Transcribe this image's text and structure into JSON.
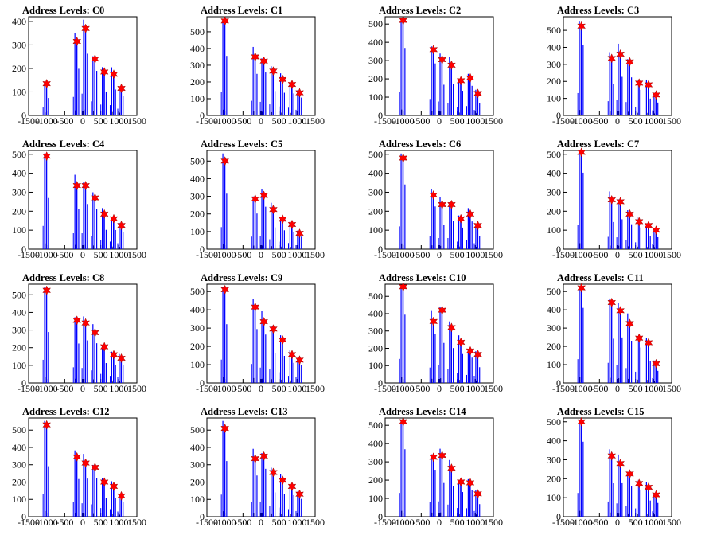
{
  "colors": {
    "bars": "#0000ff",
    "baseline_marks": "#000000",
    "markers": "#ff0000",
    "frame": "#000000"
  },
  "chart_data": [
    {
      "type": "bar",
      "title": "Address Levels: C0",
      "xlim": [
        -1500,
        1500
      ],
      "ylim": [
        0,
        420
      ],
      "yticks": [
        0,
        100,
        200,
        300,
        400
      ],
      "xticks": [
        -1500,
        -1000,
        -500,
        0,
        500,
        1000,
        1500
      ],
      "peaks_x": [
        -1000,
        -160,
        80,
        340,
        600,
        860,
        1070
      ],
      "peaks_y": [
        135,
        315,
        370,
        240,
        185,
        175,
        115
      ]
    },
    {
      "type": "bar",
      "title": "Address Levels: C1",
      "xlim": [
        -1500,
        1500
      ],
      "ylim": [
        0,
        590
      ],
      "yticks": [
        0,
        100,
        200,
        300,
        400,
        500
      ],
      "xticks": [
        -1500,
        -1000,
        -500,
        0,
        500,
        1000,
        1500
      ],
      "peaks_x": [
        -1000,
        -160,
        80,
        340,
        600,
        860,
        1070
      ],
      "peaks_y": [
        565,
        350,
        325,
        265,
        215,
        185,
        135
      ]
    },
    {
      "type": "bar",
      "title": "Address Levels: C2",
      "xlim": [
        -1500,
        1500
      ],
      "ylim": [
        0,
        540
      ],
      "yticks": [
        0,
        100,
        200,
        300,
        400,
        500
      ],
      "xticks": [
        -1500,
        -1000,
        -500,
        0,
        500,
        1000,
        1500
      ],
      "peaks_x": [
        -1000,
        -160,
        80,
        340,
        600,
        860,
        1070
      ],
      "peaks_y": [
        520,
        360,
        305,
        275,
        190,
        205,
        120
      ]
    },
    {
      "type": "bar",
      "title": "Address Levels: C3",
      "xlim": [
        -1500,
        1500
      ],
      "ylim": [
        0,
        580
      ],
      "yticks": [
        0,
        100,
        200,
        300,
        400,
        500
      ],
      "xticks": [
        -1500,
        -1000,
        -500,
        0,
        500,
        1000,
        1500
      ],
      "peaks_x": [
        -1000,
        -160,
        80,
        340,
        600,
        860,
        1070
      ],
      "peaks_y": [
        525,
        335,
        360,
        315,
        190,
        180,
        120
      ]
    },
    {
      "type": "bar",
      "title": "Address Levels: C4",
      "xlim": [
        -1500,
        1500
      ],
      "ylim": [
        0,
        520
      ],
      "yticks": [
        0,
        100,
        200,
        300,
        400,
        500
      ],
      "xticks": [
        -1500,
        -1000,
        -500,
        0,
        500,
        1000,
        1500
      ],
      "peaks_x": [
        -1000,
        -160,
        80,
        340,
        600,
        860,
        1070
      ],
      "peaks_y": [
        490,
        335,
        335,
        270,
        185,
        160,
        125
      ]
    },
    {
      "type": "bar",
      "title": "Address Levels: C5",
      "xlim": [
        -1500,
        1500
      ],
      "ylim": [
        0,
        560
      ],
      "yticks": [
        0,
        100,
        200,
        300,
        400,
        500
      ],
      "xticks": [
        -1500,
        -1000,
        -500,
        0,
        500,
        1000,
        1500
      ],
      "peaks_x": [
        -1000,
        -160,
        80,
        340,
        600,
        860,
        1070
      ],
      "peaks_y": [
        500,
        285,
        305,
        225,
        170,
        140,
        90
      ]
    },
    {
      "type": "bar",
      "title": "Address Levels: C6",
      "xlim": [
        -1500,
        1500
      ],
      "ylim": [
        0,
        520
      ],
      "yticks": [
        0,
        100,
        200,
        300,
        400,
        500
      ],
      "xticks": [
        -1500,
        -1000,
        -500,
        0,
        500,
        1000,
        1500
      ],
      "peaks_x": [
        -1000,
        -160,
        80,
        340,
        600,
        860,
        1070
      ],
      "peaks_y": [
        480,
        285,
        235,
        235,
        160,
        185,
        125
      ]
    },
    {
      "type": "bar",
      "title": "Address Levels: C7",
      "xlim": [
        -1500,
        1500
      ],
      "ylim": [
        0,
        520
      ],
      "yticks": [
        0,
        100,
        200,
        300,
        400,
        500
      ],
      "xticks": [
        -1500,
        -1000,
        -500,
        0,
        500,
        1000,
        1500
      ],
      "peaks_x": [
        -1000,
        -160,
        80,
        340,
        600,
        860,
        1070
      ],
      "peaks_y": [
        510,
        260,
        250,
        185,
        145,
        125,
        100
      ]
    },
    {
      "type": "bar",
      "title": "Address Levels: C8",
      "xlim": [
        -1500,
        1500
      ],
      "ylim": [
        0,
        560
      ],
      "yticks": [
        0,
        100,
        200,
        300,
        400,
        500
      ],
      "xticks": [
        -1500,
        -1000,
        -500,
        0,
        500,
        1000,
        1500
      ],
      "peaks_x": [
        -1000,
        -160,
        80,
        340,
        600,
        860,
        1070
      ],
      "peaks_y": [
        525,
        355,
        340,
        285,
        205,
        160,
        140
      ]
    },
    {
      "type": "bar",
      "title": "Address Levels: C9",
      "xlim": [
        -1500,
        1500
      ],
      "ylim": [
        0,
        540
      ],
      "yticks": [
        0,
        100,
        200,
        300,
        400,
        500
      ],
      "xticks": [
        -1500,
        -1000,
        -500,
        0,
        500,
        1000,
        1500
      ],
      "peaks_x": [
        -1000,
        -160,
        80,
        340,
        600,
        860,
        1070
      ],
      "peaks_y": [
        510,
        415,
        335,
        295,
        235,
        155,
        125
      ]
    },
    {
      "type": "bar",
      "title": "Address Levels: C10",
      "xlim": [
        -1500,
        1500
      ],
      "ylim": [
        0,
        570
      ],
      "yticks": [
        0,
        100,
        200,
        300,
        400,
        500
      ],
      "xticks": [
        -1500,
        -1000,
        -500,
        0,
        500,
        1000,
        1500
      ],
      "peaks_x": [
        -1000,
        -160,
        80,
        340,
        600,
        860,
        1070
      ],
      "peaks_y": [
        555,
        355,
        420,
        320,
        235,
        185,
        165
      ]
    },
    {
      "type": "bar",
      "title": "Address Levels: C11",
      "xlim": [
        -1500,
        1500
      ],
      "ylim": [
        0,
        540
      ],
      "yticks": [
        0,
        100,
        200,
        300,
        400,
        500
      ],
      "xticks": [
        -1500,
        -1000,
        -500,
        0,
        500,
        1000,
        1500
      ],
      "peaks_x": [
        -1000,
        -160,
        80,
        340,
        600,
        860,
        1070
      ],
      "peaks_y": [
        520,
        440,
        395,
        325,
        245,
        220,
        105
      ]
    },
    {
      "type": "bar",
      "title": "Address Levels: C12",
      "xlim": [
        -1500,
        1500
      ],
      "ylim": [
        0,
        570
      ],
      "yticks": [
        0,
        100,
        200,
        300,
        400,
        500
      ],
      "xticks": [
        -1500,
        -1000,
        -500,
        0,
        500,
        1000,
        1500
      ],
      "peaks_x": [
        -1000,
        -160,
        80,
        340,
        600,
        860,
        1070
      ],
      "peaks_y": [
        530,
        345,
        310,
        285,
        200,
        175,
        120
      ]
    },
    {
      "type": "bar",
      "title": "Address Levels: C13",
      "xlim": [
        -1500,
        1500
      ],
      "ylim": [
        0,
        570
      ],
      "yticks": [
        0,
        100,
        200,
        300,
        400,
        500
      ],
      "xticks": [
        -1500,
        -1000,
        -500,
        0,
        500,
        1000,
        1500
      ],
      "peaks_x": [
        -1000,
        -160,
        80,
        340,
        600,
        860,
        1070
      ],
      "peaks_y": [
        510,
        335,
        350,
        255,
        210,
        175,
        130
      ]
    },
    {
      "type": "bar",
      "title": "Address Levels: C14",
      "xlim": [
        -1500,
        1500
      ],
      "ylim": [
        0,
        540
      ],
      "yticks": [
        0,
        100,
        200,
        300,
        400,
        500
      ],
      "xticks": [
        -1500,
        -1000,
        -500,
        0,
        500,
        1000,
        1500
      ],
      "peaks_x": [
        -1000,
        -160,
        80,
        340,
        600,
        860,
        1070
      ],
      "peaks_y": [
        520,
        325,
        335,
        265,
        190,
        185,
        125
      ]
    },
    {
      "type": "bar",
      "title": "Address Levels: C15",
      "xlim": [
        -1500,
        1500
      ],
      "ylim": [
        0,
        520
      ],
      "yticks": [
        0,
        100,
        200,
        300,
        400,
        500
      ],
      "xticks": [
        -1500,
        -1000,
        -500,
        0,
        500,
        1000,
        1500
      ],
      "peaks_x": [
        -1000,
        -160,
        80,
        340,
        600,
        860,
        1070
      ],
      "peaks_y": [
        500,
        320,
        280,
        225,
        175,
        155,
        115
      ]
    }
  ]
}
